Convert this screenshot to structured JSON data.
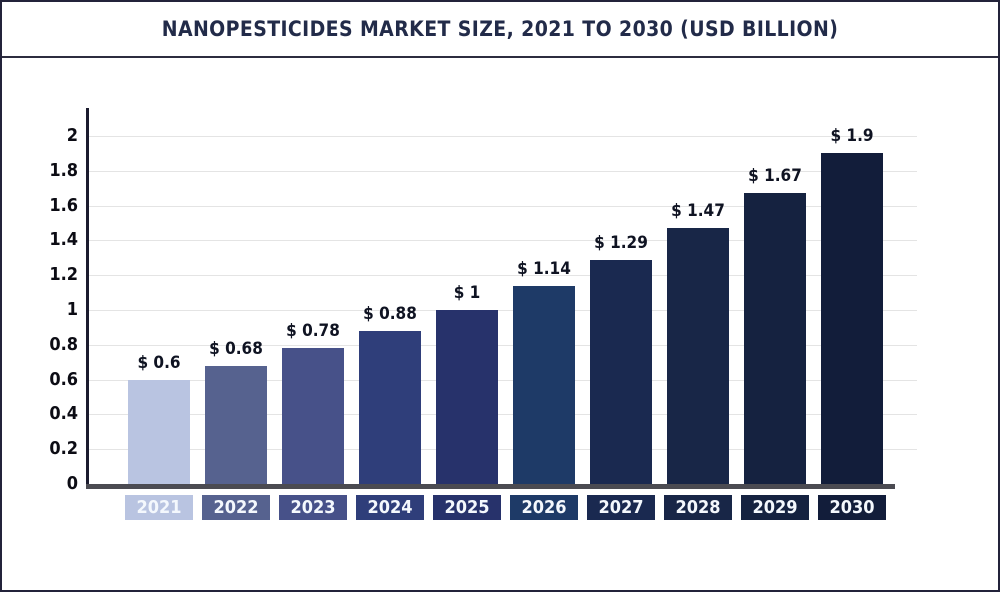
{
  "title": "NANOPESTICIDES MARKET SIZE, 2021 TO 2030 (USD BILLION)",
  "chart_data": {
    "type": "bar",
    "title": "NANOPESTICIDES MARKET SIZE, 2021 TO 2030 (USD BILLION)",
    "xlabel": "",
    "ylabel": "",
    "categories": [
      "2021",
      "2022",
      "2023",
      "2024",
      "2025",
      "2026",
      "2027",
      "2028",
      "2029",
      "2030"
    ],
    "values": [
      0.6,
      0.68,
      0.78,
      0.88,
      1,
      1.14,
      1.29,
      1.47,
      1.67,
      1.9
    ],
    "value_labels": [
      "$ 0.6",
      "$ 0.68",
      "$ 0.78",
      "$ 0.88",
      "$ 1",
      "$ 1.14",
      "$ 1.29",
      "$ 1.47",
      "$ 1.67",
      "$ 1.9"
    ],
    "bar_colors": [
      "#b9c4e1",
      "#56628f",
      "#475189",
      "#2f3e7a",
      "#27326b",
      "#1e3a67",
      "#1a2950",
      "#182647",
      "#152240",
      "#121d3a"
    ],
    "y_tick_labels": [
      "2",
      "1.8",
      "1.6",
      "1.4",
      "1.2",
      "1",
      "0.8",
      "0.6",
      "0.4",
      "0.2",
      "0"
    ],
    "y_tick_values": [
      2,
      1.8,
      1.6,
      1.4,
      1.2,
      1,
      0.8,
      0.6,
      0.4,
      0.2,
      0
    ],
    "ylim": [
      0,
      2
    ],
    "grid": true,
    "legend": "none"
  },
  "colors": {
    "background": "#ffffff",
    "frame_border": "#23233a",
    "title_text": "#222b49",
    "title_divider": "#2c2c3f",
    "gridline": "#e4e4e4",
    "y_axis_line": "#1b1b2e",
    "x_axis_line": "#4b4b52",
    "tick_text": "#0c0c14",
    "value_text": "#0f1322",
    "year_text": "#f4f8fd"
  }
}
